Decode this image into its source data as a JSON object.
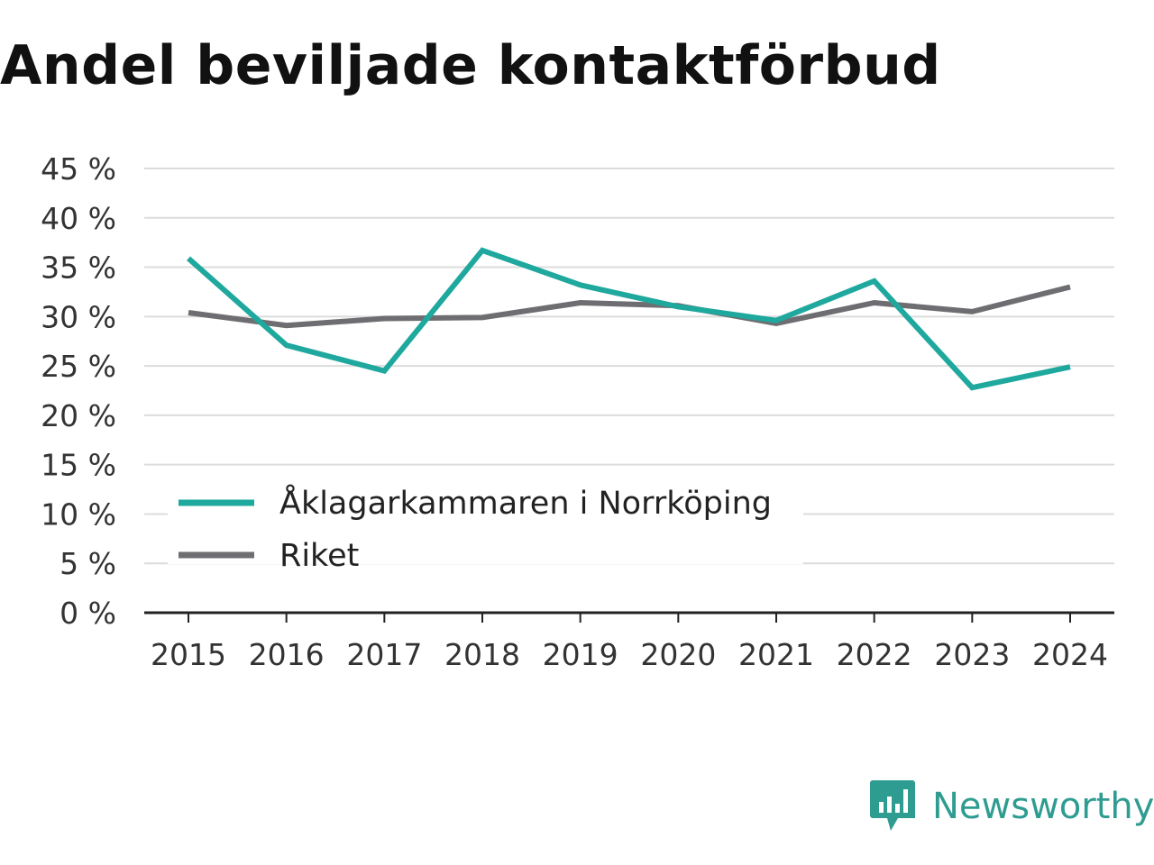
{
  "chart_data": {
    "type": "line",
    "title": "Andel beviljade kontaktförbud",
    "x": [
      "2015",
      "2016",
      "2017",
      "2018",
      "2019",
      "2020",
      "2021",
      "2022",
      "2023",
      "2024"
    ],
    "series": [
      {
        "name": "Åklagarkammaren i Norrköping",
        "color": "#1fa89d",
        "values": [
          35.9,
          27.1,
          24.5,
          36.7,
          33.2,
          31.0,
          29.6,
          33.6,
          22.8,
          24.9
        ]
      },
      {
        "name": "Riket",
        "color": "#6e6e72",
        "values": [
          30.4,
          29.1,
          29.8,
          29.9,
          31.4,
          31.1,
          29.3,
          31.4,
          30.5,
          33.0
        ]
      }
    ],
    "y_ticks": [
      "0 %",
      "5 %",
      "10 %",
      "15 %",
      "20 %",
      "25 %",
      "30 %",
      "35 %",
      "40 %",
      "45 %"
    ],
    "ylim": [
      0,
      45
    ],
    "grid": true,
    "legend_position": "bottom-left"
  },
  "brand": {
    "name": "Newsworthy",
    "logo_icon": "bar-chart-speech-bubble-icon",
    "color": "#2f9c91"
  }
}
